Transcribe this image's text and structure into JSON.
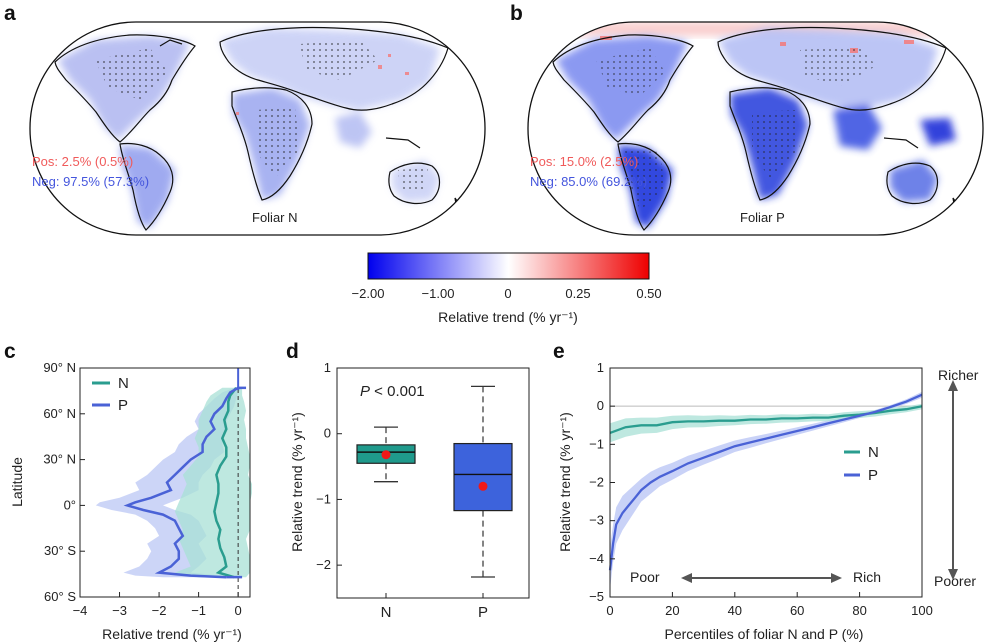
{
  "colors": {
    "N": "#2a9d8f",
    "P": "#4a62d6",
    "N_band": "#a8e0d5",
    "P_band": "#b7c3f4",
    "pos": "#f05a5a",
    "neg": "#4455dd",
    "box_N": "#1f9a8c",
    "box_P": "#3d63dc",
    "mean": "#f01818",
    "cmap_low": "#0000ee",
    "cmap_mid": "#ffffff",
    "cmap_high": "#ee0000"
  },
  "panel_a": {
    "label": "a",
    "map_title": "Foliar N",
    "pos_text": "Pos: 2.5% (0.5%)",
    "neg_text": "Neg: 97.5% (57.3%)"
  },
  "panel_b": {
    "label": "b",
    "map_title": "Foliar P",
    "pos_text": "Pos: 15.0% (2.5%)",
    "neg_text": "Neg: 85.0% (69.2%)"
  },
  "colorbar": {
    "ticks": [
      "−2.00",
      "−1.00",
      "0",
      "0.25",
      "0.50"
    ],
    "label": "Relative trend (% yr⁻¹)"
  },
  "chart_data": [
    {
      "panel": "c",
      "type": "line",
      "orientation": "vertical-profile",
      "xlabel": "Relative trend (% yr⁻¹)",
      "ylabel": "Latitude",
      "xlim": [
        -4,
        0.3
      ],
      "ylim": [
        -60,
        90
      ],
      "x_ticks": [
        -4,
        -3,
        -2,
        -1,
        0
      ],
      "x_tick_labels": [
        "−4",
        "−3",
        "−2",
        "−1",
        "0"
      ],
      "y_ticks": [
        90,
        60,
        30,
        0,
        -30,
        -60
      ],
      "y_tick_labels": [
        "90° N",
        "60° N",
        "30° N",
        "0°",
        "30° S",
        "60° S"
      ],
      "legend": [
        "N",
        "P"
      ],
      "legend_position": "top-left",
      "series": [
        {
          "name": "N",
          "lat": [
            77,
            72,
            68,
            62,
            56,
            50,
            44,
            38,
            32,
            26,
            20,
            14,
            8,
            2,
            -4,
            -10,
            -16,
            -22,
            -28,
            -34,
            -40,
            -44,
            -47
          ],
          "values": [
            -0.05,
            -0.2,
            -0.25,
            -0.25,
            -0.35,
            -0.3,
            -0.4,
            -0.3,
            -0.3,
            -0.45,
            -0.55,
            -0.5,
            -0.5,
            -0.55,
            -0.6,
            -0.55,
            -0.45,
            -0.5,
            -0.45,
            -0.35,
            -0.3,
            -0.5,
            -0.1
          ],
          "band_lower": [
            -0.4,
            -0.7,
            -0.8,
            -0.9,
            -1.0,
            -1.0,
            -1.1,
            -1.0,
            -1.0,
            -1.2,
            -1.4,
            -1.3,
            -1.4,
            -1.5,
            -1.6,
            -1.5,
            -1.4,
            -1.5,
            -1.4,
            -1.3,
            -1.2,
            -1.6,
            -1.0
          ],
          "band_upper": [
            0.1,
            0.1,
            0.15,
            0.2,
            0.15,
            0.2,
            0.2,
            0.25,
            0.3,
            0.3,
            0.25,
            0.35,
            0.35,
            0.3,
            0.3,
            0.3,
            0.3,
            0.2,
            0.25,
            0.3,
            0.3,
            0.3,
            0.2
          ]
        },
        {
          "name": "P",
          "lat": [
            77,
            74,
            70,
            65,
            60,
            55,
            50,
            45,
            40,
            35,
            30,
            25,
            20,
            15,
            10,
            5,
            2,
            0,
            -3,
            -6,
            -10,
            -15,
            -20,
            -25,
            -30,
            -35,
            -40,
            -44,
            -46,
            -47
          ],
          "values": [
            0.0,
            -0.2,
            -0.3,
            -0.4,
            -0.6,
            -0.7,
            -0.6,
            -0.8,
            -0.9,
            -0.9,
            -1.2,
            -1.4,
            -1.6,
            -1.8,
            -1.7,
            -2.2,
            -2.6,
            -2.8,
            -2.4,
            -1.9,
            -1.6,
            -1.5,
            -1.4,
            -1.6,
            -1.5,
            -1.5,
            -1.7,
            -2.0,
            -1.2,
            -0.3
          ],
          "band_lower": [
            -0.1,
            -0.4,
            -0.6,
            -0.8,
            -1.0,
            -1.1,
            -1.0,
            -1.3,
            -1.5,
            -1.6,
            -1.9,
            -2.1,
            -2.3,
            -2.6,
            -2.5,
            -3.0,
            -3.5,
            -3.6,
            -3.2,
            -2.6,
            -2.3,
            -2.1,
            -2.0,
            -2.3,
            -2.2,
            -2.3,
            -2.5,
            -2.9,
            -2.6,
            -1.9
          ],
          "band_upper": [
            0.1,
            0.0,
            -0.05,
            -0.1,
            -0.2,
            -0.3,
            -0.25,
            -0.35,
            -0.4,
            -0.35,
            -0.6,
            -0.7,
            -0.9,
            -1.0,
            -1.0,
            -1.4,
            -1.7,
            -1.9,
            -1.6,
            -1.2,
            -1.0,
            -0.9,
            -0.8,
            -1.0,
            -0.9,
            -0.8,
            -1.0,
            -1.2,
            -0.4,
            0.1
          ]
        }
      ]
    },
    {
      "panel": "d",
      "type": "box",
      "ylabel": "Relative trend (% yr⁻¹)",
      "ylim": [
        -2.5,
        1.0
      ],
      "y_ticks": [
        1,
        0,
        -1,
        -2
      ],
      "y_tick_labels": [
        "1",
        "0",
        "−1",
        "−2"
      ],
      "categories": [
        "N",
        "P"
      ],
      "annotation": "P < 0.001",
      "boxes": [
        {
          "name": "N",
          "whisker_low": -0.73,
          "q1": -0.45,
          "median": -0.28,
          "q3": -0.17,
          "whisker_high": 0.1,
          "mean": -0.32
        },
        {
          "name": "P",
          "whisker_low": -2.18,
          "q1": -1.17,
          "median": -0.62,
          "q3": -0.15,
          "whisker_high": 0.72,
          "mean": -0.8
        }
      ]
    },
    {
      "panel": "e",
      "type": "line",
      "xlabel": "Percentiles of foliar N and P (%)",
      "ylabel": "Relative trend (% yr⁻¹)",
      "xlim": [
        0,
        100
      ],
      "ylim": [
        -5,
        1
      ],
      "x_ticks": [
        0,
        20,
        40,
        60,
        80,
        100
      ],
      "y_ticks": [
        1,
        0,
        -1,
        -2,
        -3,
        -4,
        -5
      ],
      "y_tick_labels": [
        "1",
        "0",
        "−1",
        "−2",
        "−3",
        "−4",
        "−5"
      ],
      "legend": [
        "N",
        "P"
      ],
      "legend_position": "center-right",
      "annotations": {
        "poor": "Poor",
        "rich": "Rich",
        "richer": "Richer",
        "poorer": "Poorer"
      },
      "series": [
        {
          "name": "N",
          "x": [
            0,
            5,
            10,
            15,
            20,
            25,
            30,
            35,
            40,
            45,
            50,
            55,
            60,
            65,
            70,
            75,
            80,
            85,
            90,
            95,
            100
          ],
          "values": [
            -0.7,
            -0.55,
            -0.5,
            -0.5,
            -0.42,
            -0.4,
            -0.4,
            -0.38,
            -0.38,
            -0.35,
            -0.35,
            -0.32,
            -0.32,
            -0.3,
            -0.3,
            -0.25,
            -0.22,
            -0.18,
            -0.12,
            -0.08,
            0.0
          ],
          "band_lower": [
            -0.95,
            -0.8,
            -0.72,
            -0.7,
            -0.6,
            -0.56,
            -0.55,
            -0.52,
            -0.5,
            -0.47,
            -0.46,
            -0.43,
            -0.42,
            -0.4,
            -0.39,
            -0.34,
            -0.31,
            -0.27,
            -0.21,
            -0.16,
            -0.08
          ],
          "band_upper": [
            -0.45,
            -0.32,
            -0.3,
            -0.3,
            -0.25,
            -0.24,
            -0.25,
            -0.24,
            -0.25,
            -0.23,
            -0.24,
            -0.21,
            -0.22,
            -0.2,
            -0.21,
            -0.16,
            -0.13,
            -0.1,
            -0.04,
            0.0,
            0.06
          ]
        },
        {
          "name": "P",
          "x": [
            0,
            1,
            2,
            4,
            6,
            8,
            10,
            13,
            16,
            20,
            25,
            30,
            35,
            40,
            45,
            50,
            55,
            60,
            65,
            70,
            75,
            80,
            85,
            90,
            95,
            100
          ],
          "values": [
            -4.3,
            -3.6,
            -3.1,
            -2.8,
            -2.6,
            -2.4,
            -2.2,
            -2.0,
            -1.85,
            -1.7,
            -1.5,
            -1.35,
            -1.2,
            -1.05,
            -0.95,
            -0.85,
            -0.75,
            -0.65,
            -0.55,
            -0.45,
            -0.35,
            -0.25,
            -0.15,
            -0.02,
            0.12,
            0.3
          ],
          "band_lower": [
            -4.8,
            -4.1,
            -3.6,
            -3.25,
            -3.0,
            -2.75,
            -2.5,
            -2.3,
            -2.1,
            -1.93,
            -1.7,
            -1.53,
            -1.37,
            -1.2,
            -1.09,
            -0.97,
            -0.86,
            -0.75,
            -0.64,
            -0.53,
            -0.42,
            -0.31,
            -0.2,
            -0.07,
            0.06,
            0.22
          ],
          "band_upper": [
            -3.7,
            -3.1,
            -2.65,
            -2.35,
            -2.2,
            -2.05,
            -1.9,
            -1.72,
            -1.6,
            -1.48,
            -1.3,
            -1.17,
            -1.03,
            -0.9,
            -0.81,
            -0.73,
            -0.64,
            -0.55,
            -0.46,
            -0.37,
            -0.28,
            -0.19,
            -0.1,
            0.03,
            0.18,
            0.38
          ]
        }
      ]
    }
  ]
}
